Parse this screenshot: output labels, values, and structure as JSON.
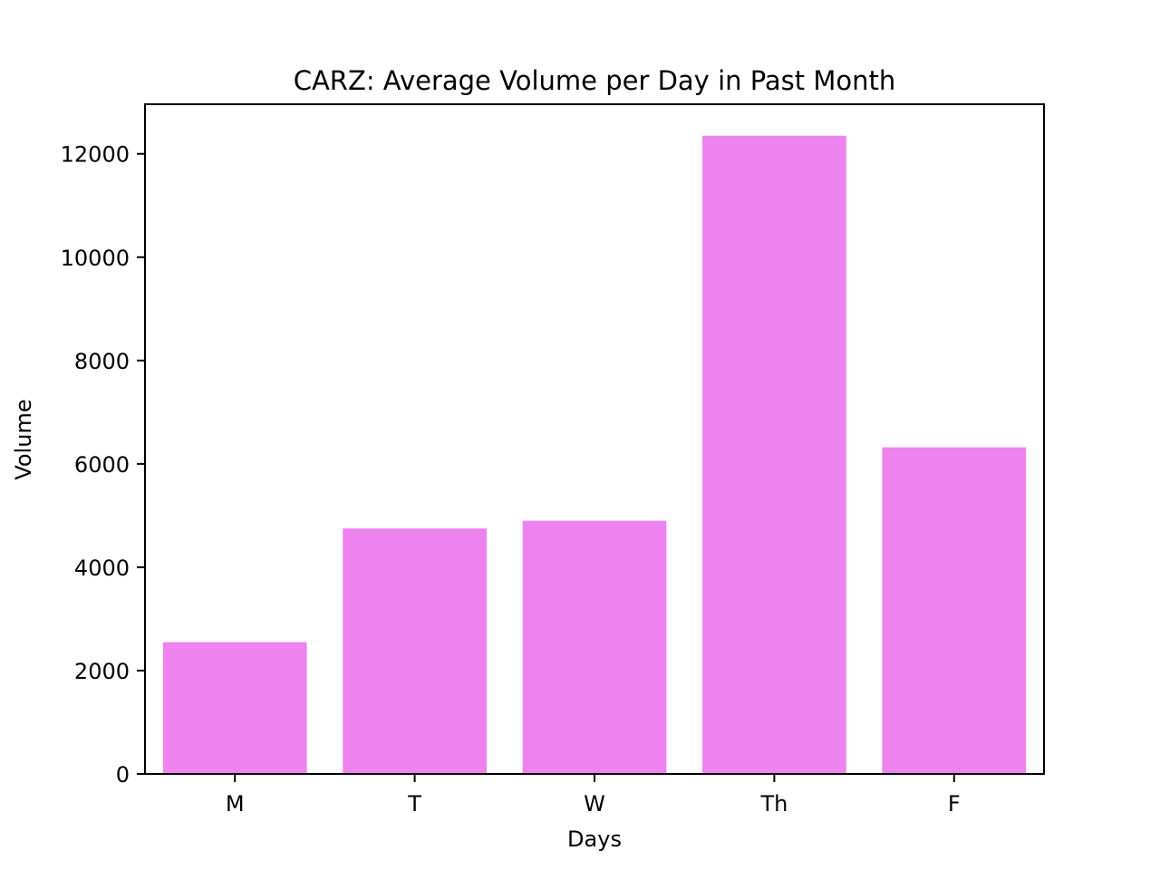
{
  "chart_data": {
    "type": "bar",
    "title": "CARZ: Average Volume per Day in Past Month",
    "xlabel": "Days",
    "ylabel": "Volume",
    "categories": [
      "M",
      "T",
      "W",
      "Th",
      "F"
    ],
    "values": [
      2550,
      4750,
      4900,
      12350,
      6320
    ],
    "ylim": [
      0,
      12960
    ],
    "yticks": [
      0,
      2000,
      4000,
      6000,
      8000,
      10000,
      12000
    ],
    "bar_color": "#ee82ee",
    "grid": false,
    "legend": "none"
  }
}
